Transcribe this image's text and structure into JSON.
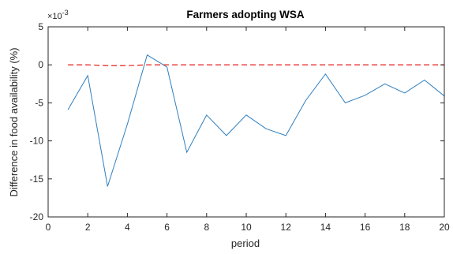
{
  "chart_data": {
    "type": "line",
    "title": "Farmers adopting WSA",
    "xlabel": "period",
    "ylabel": "Difference in food availability (%)",
    "y_exponent_label": "×10",
    "y_exponent_power": "-3",
    "xlim": [
      0,
      20
    ],
    "ylim": [
      -20,
      5
    ],
    "x_ticks": [
      0,
      2,
      4,
      6,
      8,
      10,
      12,
      14,
      16,
      18,
      20
    ],
    "y_ticks": [
      5,
      0,
      -5,
      -10,
      -15,
      -20
    ],
    "box": true,
    "grid": false,
    "series": [
      {
        "style": "solid",
        "color": "#2f7fbf",
        "x": [
          1,
          2,
          3,
          4,
          5,
          6,
          7,
          8,
          9,
          10,
          11,
          12,
          13,
          14,
          15,
          16,
          17,
          18,
          19,
          20
        ],
        "values": [
          -5.9,
          -1.4,
          -16.0,
          -7.8,
          1.3,
          -0.3,
          -11.5,
          -6.6,
          -9.3,
          -6.6,
          -8.4,
          -9.3,
          -4.7,
          -1.2,
          -5.0,
          -4.0,
          -2.5,
          -3.7,
          -2.0,
          -4.1
        ]
      },
      {
        "style": "dashed",
        "color": "#e8312f",
        "x": [
          1,
          2,
          3,
          4,
          5,
          6,
          7,
          8,
          9,
          10,
          11,
          12,
          13,
          14,
          15,
          16,
          17,
          18,
          19,
          20
        ],
        "values": [
          0.0,
          0.0,
          -0.1,
          -0.1,
          0.0,
          0.0,
          0.0,
          0.0,
          0.0,
          0.0,
          0.0,
          0.0,
          0.0,
          0.0,
          0.0,
          0.0,
          0.0,
          0.0,
          0.0,
          0.0
        ]
      }
    ]
  }
}
